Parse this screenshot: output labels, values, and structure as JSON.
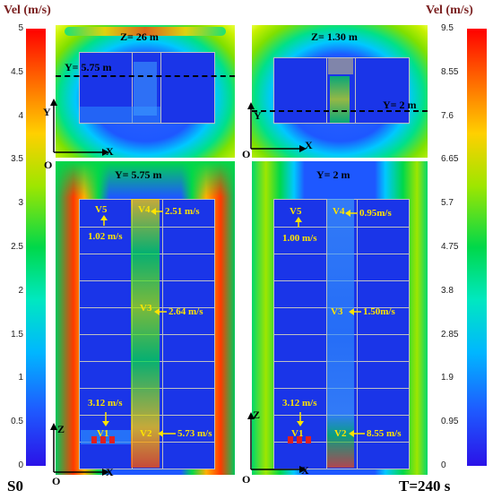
{
  "left_colorbar": {
    "title": "Vel (m/s)",
    "ticks": [
      "5",
      "4.5",
      "4",
      "3.5",
      "3",
      "2.5",
      "2",
      "1.5",
      "1",
      "0.5",
      "0"
    ],
    "label": "S0"
  },
  "right_colorbar": {
    "title": "Vel (m/s)",
    "ticks": [
      "9.5",
      "8.55",
      "7.6",
      "6.65",
      "5.7",
      "4.75",
      "3.8",
      "2.85",
      "1.9",
      "0.95",
      "0"
    ]
  },
  "time_label": "T=240 s",
  "panels": {
    "top_left": {
      "title": "Z= 26 m",
      "section": "Y= 5.75 m",
      "axis_y": "Y",
      "axis_x": "X",
      "origin": "O"
    },
    "top_right": {
      "title": "Z= 1.30 m",
      "section": "Y= 2 m",
      "axis_y": "Y",
      "axis_x": "X",
      "origin": "O"
    },
    "bottom_left": {
      "title": "Y= 5.75 m",
      "axis_z": "Z",
      "axis_x": "X",
      "origin": "O",
      "labels": {
        "v5": "V5",
        "v5_val": "1.02 m/s",
        "v4": "V4",
        "v4_val": "2.51 m/s",
        "v3": "V3",
        "v3_val": "2.64 m/s",
        "v1_val": "3.12 m/s",
        "v1": "V1",
        "v2": "V2",
        "v2_val": "5.73 m/s"
      }
    },
    "bottom_right": {
      "title": "Y= 2 m",
      "axis_z": "Z",
      "axis_x": "X",
      "origin": "O",
      "labels": {
        "v5": "V5",
        "v5_val": "1.00 m/s",
        "v4": "V4",
        "v4_val": "0.95m/s",
        "v3": "V3",
        "v3_val": "1.50m/s",
        "v1_val": "3.12 m/s",
        "v1": "V1",
        "v2": "V2",
        "v2_val": "8.55 m/s"
      }
    }
  },
  "colors": {
    "low": "#1d2ee0",
    "mid": "#00d84a",
    "high": "#ff2200",
    "label": "#ffe400"
  }
}
